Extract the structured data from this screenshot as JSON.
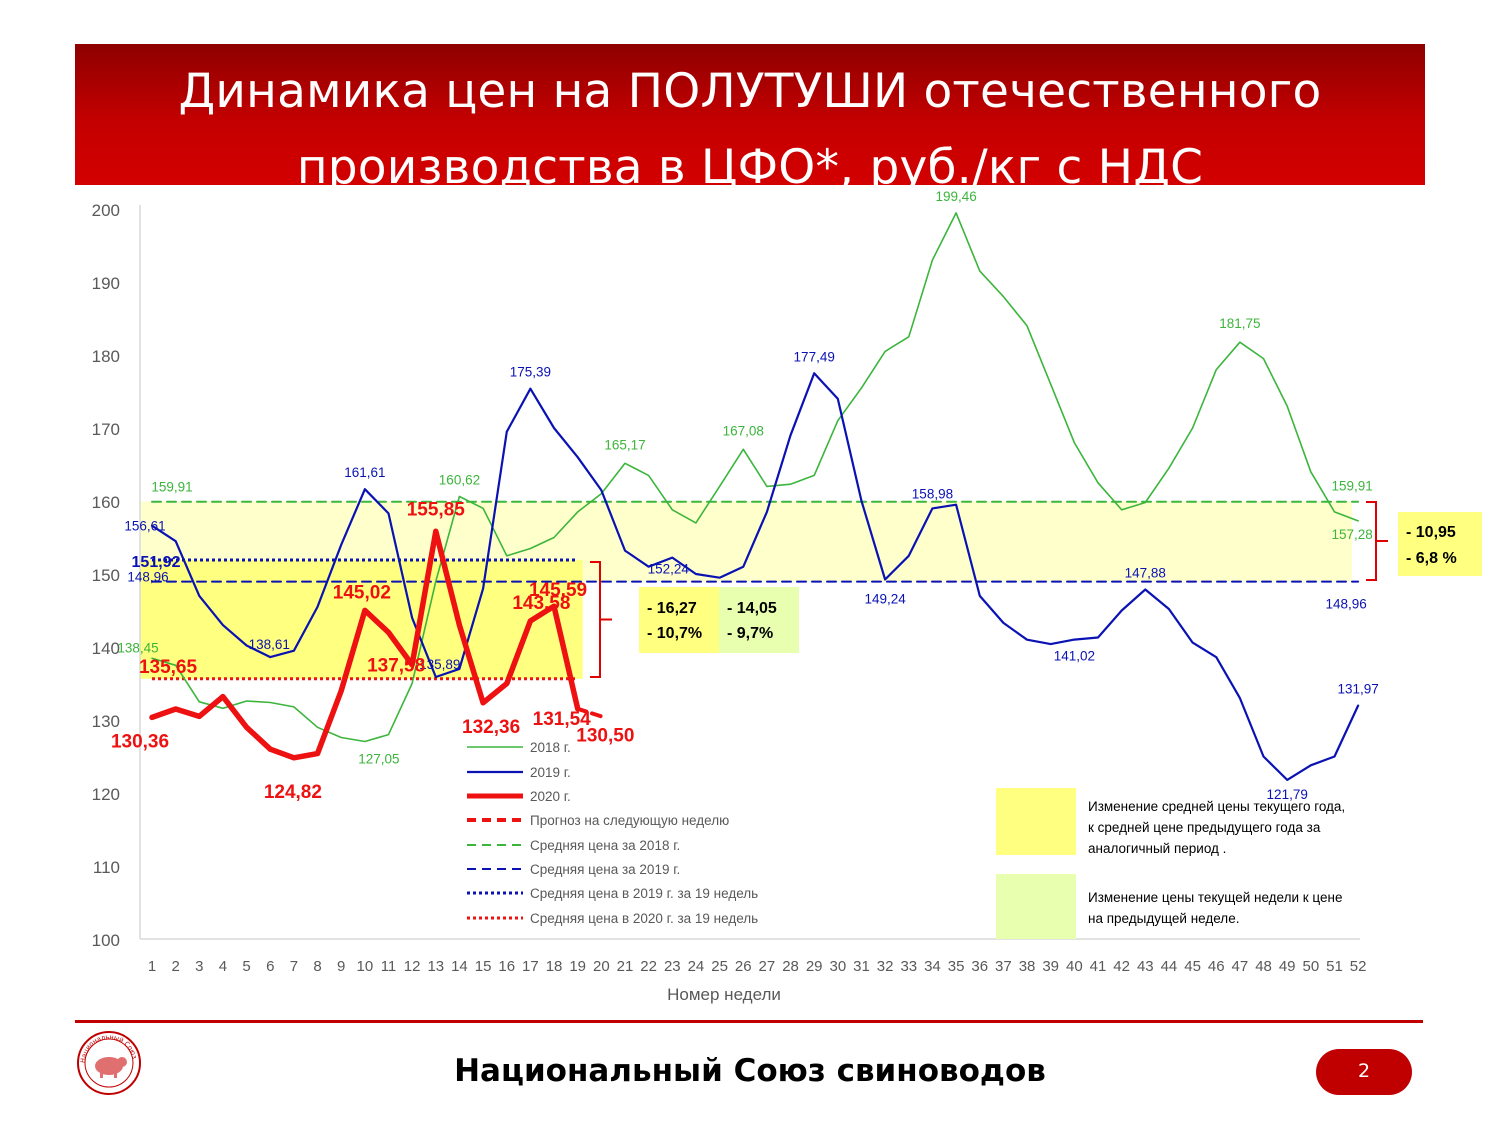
{
  "title": {
    "line1": "Динамика цен на ПОЛУТУШИ отечественного",
    "line2": "производства в ЦФО*, руб./кг с НДС"
  },
  "footer": {
    "organization": "Национальный Союз свиноводов",
    "page_number": "2",
    "logo_text": "Национальный Союз Свиноводов"
  },
  "colors": {
    "header_red": "#c40000",
    "series_2018": "#3cb53c",
    "series_2019": "#0a12b4",
    "series_2020": "#ee1111",
    "band_yellow": "#ffff80",
    "band_green": "#e8ffb0"
  },
  "chart_data": {
    "type": "line",
    "title": "",
    "xlabel": "Номер недели",
    "ylabel": "",
    "ylim": [
      100,
      200
    ],
    "yticks": [
      100,
      110,
      120,
      130,
      140,
      150,
      160,
      170,
      180,
      190,
      200
    ],
    "x": [
      1,
      2,
      3,
      4,
      5,
      6,
      7,
      8,
      9,
      10,
      11,
      12,
      13,
      14,
      15,
      16,
      17,
      18,
      19,
      20,
      21,
      22,
      23,
      24,
      25,
      26,
      27,
      28,
      29,
      30,
      31,
      32,
      33,
      34,
      35,
      36,
      37,
      38,
      39,
      40,
      41,
      42,
      43,
      44,
      45,
      46,
      47,
      48,
      49,
      50,
      51,
      52
    ],
    "grid": false,
    "series": [
      {
        "name": "2018 г.",
        "color": "#3cb53c",
        "width": 1.6,
        "values": [
          138.45,
          137.5,
          132.5,
          131.6,
          132.6,
          132.4,
          131.8,
          129.0,
          127.6,
          127.05,
          128.0,
          135.0,
          149.0,
          160.62,
          159.0,
          152.5,
          153.5,
          155.0,
          158.5,
          161.0,
          165.17,
          163.5,
          158.8,
          157.0,
          162.0,
          167.08,
          162.0,
          162.3,
          163.5,
          171.0,
          175.5,
          180.5,
          182.5,
          193.0,
          199.46,
          191.5,
          188.0,
          184.0,
          176.0,
          168.0,
          162.5,
          158.8,
          159.8,
          164.5,
          170.0,
          178.0,
          181.75,
          179.5,
          173.0,
          164.0,
          158.5,
          157.28
        ]
      },
      {
        "name": "2019 г.",
        "color": "#0a12b4",
        "width": 2.2,
        "values": [
          156.61,
          154.5,
          147.0,
          143.0,
          140.2,
          138.61,
          139.5,
          145.5,
          154.0,
          161.61,
          158.3,
          144.0,
          135.89,
          137.0,
          148.0,
          169.5,
          175.39,
          170.0,
          166.0,
          161.5,
          153.2,
          151.0,
          152.24,
          150.0,
          149.5,
          151.0,
          158.5,
          169.0,
          177.49,
          174.0,
          160.0,
          149.24,
          152.5,
          158.98,
          159.5,
          147.0,
          143.3,
          141.0,
          140.4,
          141.02,
          141.3,
          145.0,
          147.88,
          145.2,
          140.6,
          138.6,
          133.0,
          125.0,
          121.79,
          123.8,
          125.0,
          131.97
        ]
      },
      {
        "name": "2020 г.",
        "color": "#ee1111",
        "width": 5.5,
        "values": [
          130.36,
          131.5,
          130.5,
          133.2,
          129.0,
          126.0,
          124.82,
          125.4,
          134.0,
          145.02,
          142.0,
          137.58,
          155.85,
          143.0,
          132.36,
          135.0,
          143.58,
          145.59,
          131.54,
          null,
          null,
          null,
          null,
          null,
          null,
          null,
          null,
          null,
          null,
          null,
          null,
          null,
          null,
          null,
          null,
          null,
          null,
          null,
          null,
          null,
          null,
          null,
          null,
          null,
          null,
          null,
          null,
          null,
          null,
          null,
          null,
          null
        ]
      },
      {
        "name": "Прогноз на следующую неделю",
        "color": "#ee1111",
        "width": 4,
        "dash": "dashed",
        "points": [
          [
            19,
            131.54
          ],
          [
            20,
            130.5
          ]
        ]
      },
      {
        "name": "Средняя цена за 2018 г.",
        "color": "#3cb53c",
        "width": 2,
        "dash": "dashed",
        "points": [
          [
            1,
            159.91
          ],
          [
            52,
            159.91
          ]
        ]
      },
      {
        "name": "Средняя цена за 2019 г.",
        "color": "#0a12b4",
        "width": 2,
        "dash": "dashed",
        "points": [
          [
            1,
            148.96
          ],
          [
            52,
            148.96
          ]
        ]
      },
      {
        "name": "Средняя цена в 2019 г. за 19 недель",
        "color": "#0a12b4",
        "width": 3,
        "dash": "dotted",
        "points": [
          [
            1,
            151.92
          ],
          [
            19,
            151.92
          ]
        ]
      },
      {
        "name": "Средняя цена в 2020 г. за 19 недель",
        "color": "#ee1111",
        "width": 3,
        "dash": "dotted",
        "points": [
          [
            1,
            135.65
          ],
          [
            19,
            135.65
          ]
        ]
      }
    ],
    "bands": [
      {
        "from_x": 1,
        "to_x": 52,
        "y1": 148.96,
        "y2": 159.91,
        "color": "#ffffcc"
      },
      {
        "from_x": 1,
        "to_x": 19,
        "y1": 135.65,
        "y2": 151.92,
        "color": "#ffff80"
      }
    ],
    "data_labels": [
      {
        "text": "159,91",
        "x": 1,
        "y": 159.91,
        "series": "2018"
      },
      {
        "text": "138,45",
        "x": 1,
        "y": 138.45,
        "series": "2018"
      },
      {
        "text": "127,05",
        "x": 10,
        "y": 127.05,
        "series": "2018"
      },
      {
        "text": "160,62",
        "x": 14,
        "y": 160.62,
        "series": "2018"
      },
      {
        "text": "165,17",
        "x": 21,
        "y": 165.17,
        "series": "2018"
      },
      {
        "text": "167,08",
        "x": 26,
        "y": 167.08,
        "series": "2018"
      },
      {
        "text": "199,46",
        "x": 35,
        "y": 199.46,
        "series": "2018"
      },
      {
        "text": "181,75",
        "x": 47,
        "y": 181.75,
        "series": "2018"
      },
      {
        "text": "159,91",
        "x": 52,
        "y": 159.91,
        "series": "2018"
      },
      {
        "text": "157,28",
        "x": 52,
        "y": 157.28,
        "series": "2018"
      },
      {
        "text": "156,61",
        "x": 1,
        "y": 156.61,
        "series": "2019"
      },
      {
        "text": "148,96",
        "x": 1,
        "y": 148.96,
        "series": "2019"
      },
      {
        "text": "151,92",
        "x": 1,
        "y": 151.92,
        "series": "2019-avg19"
      },
      {
        "text": "138,61",
        "x": 6,
        "y": 138.61,
        "series": "2019"
      },
      {
        "text": "161,61",
        "x": 10,
        "y": 161.61,
        "series": "2019"
      },
      {
        "text": "135,89",
        "x": 13,
        "y": 135.89,
        "series": "2019"
      },
      {
        "text": "175,39",
        "x": 17,
        "y": 175.39,
        "series": "2019"
      },
      {
        "text": "152,24",
        "x": 23,
        "y": 152.24,
        "series": "2019"
      },
      {
        "text": "177,49",
        "x": 29,
        "y": 177.49,
        "series": "2019"
      },
      {
        "text": "149,24",
        "x": 32,
        "y": 149.24,
        "series": "2019"
      },
      {
        "text": "158,98",
        "x": 34,
        "y": 158.98,
        "series": "2019"
      },
      {
        "text": "141,02",
        "x": 40,
        "y": 141.02,
        "series": "2019"
      },
      {
        "text": "147,88",
        "x": 43,
        "y": 147.88,
        "series": "2019"
      },
      {
        "text": "121,79",
        "x": 49,
        "y": 121.79,
        "series": "2019"
      },
      {
        "text": "148,96",
        "x": 52,
        "y": 148.96,
        "series": "2019"
      },
      {
        "text": "131,97",
        "x": 52,
        "y": 131.97,
        "series": "2019"
      },
      {
        "text": "135,65",
        "x": 1,
        "y": 135.65,
        "series": "2020"
      },
      {
        "text": "130,36",
        "x": 1,
        "y": 130.36,
        "series": "2020"
      },
      {
        "text": "124,82",
        "x": 7,
        "y": 124.82,
        "series": "2020"
      },
      {
        "text": "145,02",
        "x": 10,
        "y": 145.02,
        "series": "2020"
      },
      {
        "text": "137,58",
        "x": 12,
        "y": 137.58,
        "series": "2020"
      },
      {
        "text": "155,85",
        "x": 13,
        "y": 155.85,
        "series": "2020"
      },
      {
        "text": "132,36",
        "x": 15,
        "y": 132.36,
        "series": "2020"
      },
      {
        "text": "143,58",
        "x": 17,
        "y": 143.58,
        "series": "2020"
      },
      {
        "text": "145,59",
        "x": 18,
        "y": 145.59,
        "series": "2020"
      },
      {
        "text": "131,54",
        "x": 19,
        "y": 131.54,
        "series": "2020"
      },
      {
        "text": "130,50",
        "x": 20,
        "y": 130.5,
        "series": "2020"
      }
    ],
    "annotations": {
      "avg_change_box": {
        "line1": "- 16,27",
        "line2": "- 10,7%"
      },
      "week_change_box": {
        "line1": "- 14,05",
        "line2": "- 9,7%"
      },
      "right_box": {
        "line1": "- 10,95",
        "line2": "- 6,8 %"
      }
    },
    "band_legend": {
      "yellow_text": [
        "Изменение средней цены текущего года,",
        "к средней цене предыдущего года за",
        "аналогичный период ."
      ],
      "green_text": [
        "Изменение цены текущей недели к цене",
        "на предыдущей неделе."
      ]
    },
    "legend_position": "bottom-center-inside"
  }
}
